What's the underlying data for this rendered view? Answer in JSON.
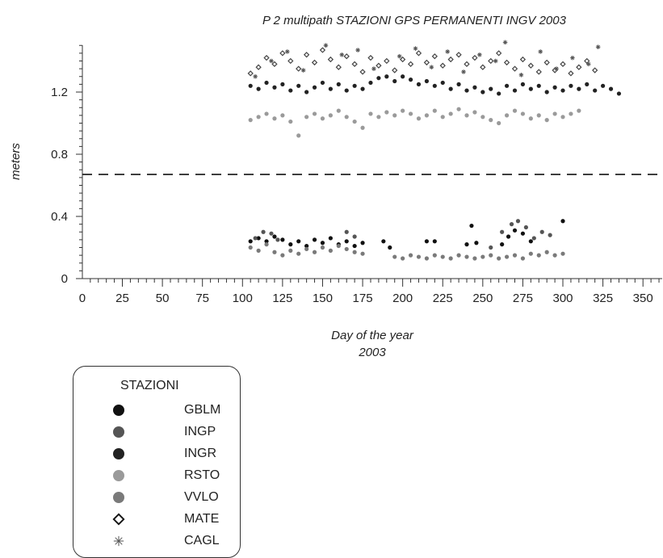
{
  "chart_data": {
    "type": "scatter",
    "title": "P 2 multipath STAZIONI GPS PERMANENTI INGV 2003",
    "xlabel": "Day of the year",
    "xlabel2": "2003",
    "ylabel": "meters",
    "xlim": [
      -5,
      362
    ],
    "ylim": [
      0,
      1.5
    ],
    "x_ticks": [
      0,
      25,
      50,
      75,
      100,
      125,
      150,
      175,
      200,
      225,
      250,
      275,
      300,
      325,
      350
    ],
    "y_ticks": [
      0,
      0.4,
      0.8,
      1.2
    ],
    "y_tick_labels": [
      "0",
      "0.4",
      "0.8",
      "1.2"
    ],
    "reference_line": {
      "y": 0.67,
      "style": "dashed"
    },
    "legend_title": "STAZIONI",
    "series": [
      {
        "name": "GBLM",
        "symbol": "circle",
        "color": "#111111",
        "points": [
          [
            105,
            0.24
          ],
          [
            110,
            0.26
          ],
          [
            115,
            0.24
          ],
          [
            120,
            0.27
          ],
          [
            125,
            0.25
          ],
          [
            130,
            0.22
          ],
          [
            135,
            0.24
          ],
          [
            140,
            0.21
          ],
          [
            145,
            0.25
          ],
          [
            150,
            0.23
          ],
          [
            155,
            0.26
          ],
          [
            160,
            0.22
          ],
          [
            165,
            0.24
          ],
          [
            170,
            0.21
          ],
          [
            175,
            0.23
          ],
          [
            188,
            0.24
          ],
          [
            192,
            0.2
          ],
          [
            215,
            0.24
          ],
          [
            220,
            0.24
          ],
          [
            240,
            0.22
          ],
          [
            243,
            0.34
          ],
          [
            246,
            0.23
          ],
          [
            262,
            0.22
          ],
          [
            266,
            0.27
          ],
          [
            270,
            0.31
          ],
          [
            275,
            0.29
          ],
          [
            280,
            0.24
          ],
          [
            300,
            0.37
          ]
        ]
      },
      {
        "name": "INGP",
        "symbol": "circle",
        "color": "#555555",
        "points": [
          [
            108,
            0.26
          ],
          [
            113,
            0.3
          ],
          [
            118,
            0.29
          ],
          [
            122,
            0.25
          ],
          [
            165,
            0.3
          ],
          [
            170,
            0.27
          ],
          [
            255,
            0.2
          ],
          [
            262,
            0.3
          ],
          [
            268,
            0.35
          ],
          [
            272,
            0.37
          ],
          [
            277,
            0.33
          ],
          [
            282,
            0.26
          ],
          [
            287,
            0.3
          ],
          [
            292,
            0.28
          ]
        ]
      },
      {
        "name": "INGR",
        "symbol": "circle",
        "color": "#222222",
        "points": [
          [
            105,
            1.24
          ],
          [
            110,
            1.22
          ],
          [
            115,
            1.26
          ],
          [
            120,
            1.23
          ],
          [
            125,
            1.25
          ],
          [
            130,
            1.21
          ],
          [
            135,
            1.24
          ],
          [
            140,
            1.2
          ],
          [
            145,
            1.23
          ],
          [
            150,
            1.26
          ],
          [
            155,
            1.22
          ],
          [
            160,
            1.25
          ],
          [
            165,
            1.21
          ],
          [
            170,
            1.24
          ],
          [
            175,
            1.22
          ],
          [
            180,
            1.26
          ],
          [
            185,
            1.29
          ],
          [
            190,
            1.3
          ],
          [
            195,
            1.27
          ],
          [
            200,
            1.3
          ],
          [
            205,
            1.28
          ],
          [
            210,
            1.25
          ],
          [
            215,
            1.27
          ],
          [
            220,
            1.24
          ],
          [
            225,
            1.26
          ],
          [
            230,
            1.22
          ],
          [
            235,
            1.25
          ],
          [
            240,
            1.21
          ],
          [
            245,
            1.23
          ],
          [
            250,
            1.2
          ],
          [
            255,
            1.22
          ],
          [
            260,
            1.19
          ],
          [
            265,
            1.24
          ],
          [
            270,
            1.21
          ],
          [
            275,
            1.25
          ],
          [
            280,
            1.22
          ],
          [
            285,
            1.24
          ],
          [
            290,
            1.2
          ],
          [
            295,
            1.23
          ],
          [
            300,
            1.21
          ],
          [
            305,
            1.24
          ],
          [
            310,
            1.22
          ],
          [
            315,
            1.25
          ],
          [
            320,
            1.21
          ],
          [
            325,
            1.24
          ],
          [
            330,
            1.22
          ],
          [
            335,
            1.19
          ]
        ]
      },
      {
        "name": "RSTO",
        "symbol": "circle",
        "color": "#9a9a9a",
        "points": [
          [
            105,
            1.02
          ],
          [
            110,
            1.04
          ],
          [
            115,
            1.06
          ],
          [
            120,
            1.03
          ],
          [
            125,
            1.05
          ],
          [
            130,
            1.01
          ],
          [
            135,
            0.92
          ],
          [
            140,
            1.04
          ],
          [
            145,
            1.06
          ],
          [
            150,
            1.03
          ],
          [
            155,
            1.05
          ],
          [
            160,
            1.08
          ],
          [
            165,
            1.04
          ],
          [
            170,
            1.01
          ],
          [
            175,
            0.97
          ],
          [
            180,
            1.06
          ],
          [
            185,
            1.04
          ],
          [
            190,
            1.07
          ],
          [
            195,
            1.05
          ],
          [
            200,
            1.08
          ],
          [
            205,
            1.06
          ],
          [
            210,
            1.03
          ],
          [
            215,
            1.05
          ],
          [
            220,
            1.08
          ],
          [
            225,
            1.04
          ],
          [
            230,
            1.06
          ],
          [
            235,
            1.09
          ],
          [
            240,
            1.05
          ],
          [
            245,
            1.07
          ],
          [
            250,
            1.04
          ],
          [
            255,
            1.02
          ],
          [
            260,
            1.0
          ],
          [
            265,
            1.05
          ],
          [
            270,
            1.08
          ],
          [
            275,
            1.06
          ],
          [
            280,
            1.03
          ],
          [
            285,
            1.05
          ],
          [
            290,
            1.02
          ],
          [
            295,
            1.06
          ],
          [
            300,
            1.04
          ],
          [
            305,
            1.06
          ],
          [
            310,
            1.08
          ]
        ]
      },
      {
        "name": "VVLO",
        "symbol": "circle",
        "color": "#7a7a7a",
        "points": [
          [
            105,
            0.2
          ],
          [
            110,
            0.18
          ],
          [
            115,
            0.22
          ],
          [
            120,
            0.17
          ],
          [
            125,
            0.15
          ],
          [
            130,
            0.18
          ],
          [
            135,
            0.16
          ],
          [
            140,
            0.19
          ],
          [
            145,
            0.17
          ],
          [
            150,
            0.2
          ],
          [
            155,
            0.18
          ],
          [
            160,
            0.21
          ],
          [
            165,
            0.19
          ],
          [
            170,
            0.17
          ],
          [
            175,
            0.16
          ],
          [
            195,
            0.14
          ],
          [
            200,
            0.13
          ],
          [
            205,
            0.15
          ],
          [
            210,
            0.14
          ],
          [
            215,
            0.13
          ],
          [
            220,
            0.15
          ],
          [
            225,
            0.14
          ],
          [
            230,
            0.13
          ],
          [
            235,
            0.15
          ],
          [
            240,
            0.14
          ],
          [
            245,
            0.13
          ],
          [
            250,
            0.14
          ],
          [
            255,
            0.15
          ],
          [
            260,
            0.13
          ],
          [
            265,
            0.14
          ],
          [
            270,
            0.15
          ],
          [
            275,
            0.13
          ],
          [
            280,
            0.16
          ],
          [
            285,
            0.15
          ],
          [
            290,
            0.17
          ],
          [
            295,
            0.15
          ],
          [
            300,
            0.16
          ]
        ]
      },
      {
        "name": "MATE",
        "symbol": "diamond",
        "color": "#444444",
        "points": [
          [
            105,
            1.32
          ],
          [
            110,
            1.36
          ],
          [
            115,
            1.42
          ],
          [
            120,
            1.38
          ],
          [
            125,
            1.45
          ],
          [
            130,
            1.4
          ],
          [
            135,
            1.35
          ],
          [
            140,
            1.44
          ],
          [
            145,
            1.39
          ],
          [
            150,
            1.47
          ],
          [
            155,
            1.41
          ],
          [
            160,
            1.36
          ],
          [
            165,
            1.43
          ],
          [
            170,
            1.38
          ],
          [
            175,
            1.33
          ],
          [
            180,
            1.42
          ],
          [
            185,
            1.37
          ],
          [
            190,
            1.4
          ],
          [
            195,
            1.34
          ],
          [
            200,
            1.41
          ],
          [
            205,
            1.38
          ],
          [
            210,
            1.45
          ],
          [
            215,
            1.39
          ],
          [
            220,
            1.43
          ],
          [
            225,
            1.37
          ],
          [
            230,
            1.41
          ],
          [
            235,
            1.44
          ],
          [
            240,
            1.38
          ],
          [
            245,
            1.42
          ],
          [
            250,
            1.36
          ],
          [
            255,
            1.4
          ],
          [
            260,
            1.45
          ],
          [
            265,
            1.39
          ],
          [
            270,
            1.35
          ],
          [
            275,
            1.41
          ],
          [
            280,
            1.37
          ],
          [
            285,
            1.33
          ],
          [
            290,
            1.39
          ],
          [
            295,
            1.34
          ],
          [
            300,
            1.38
          ],
          [
            305,
            1.32
          ],
          [
            310,
            1.36
          ],
          [
            315,
            1.4
          ],
          [
            320,
            1.34
          ]
        ]
      },
      {
        "name": "CAGL",
        "symbol": "asterisk",
        "color": "#555555",
        "points": [
          [
            108,
            1.3
          ],
          [
            118,
            1.4
          ],
          [
            128,
            1.46
          ],
          [
            138,
            1.34
          ],
          [
            152,
            1.5
          ],
          [
            162,
            1.44
          ],
          [
            172,
            1.47
          ],
          [
            182,
            1.35
          ],
          [
            198,
            1.43
          ],
          [
            208,
            1.48
          ],
          [
            218,
            1.36
          ],
          [
            228,
            1.46
          ],
          [
            238,
            1.33
          ],
          [
            248,
            1.44
          ],
          [
            258,
            1.4
          ],
          [
            264,
            1.52
          ],
          [
            274,
            1.31
          ],
          [
            286,
            1.46
          ],
          [
            296,
            1.35
          ],
          [
            306,
            1.42
          ],
          [
            316,
            1.38
          ],
          [
            322,
            1.49
          ]
        ]
      }
    ]
  }
}
